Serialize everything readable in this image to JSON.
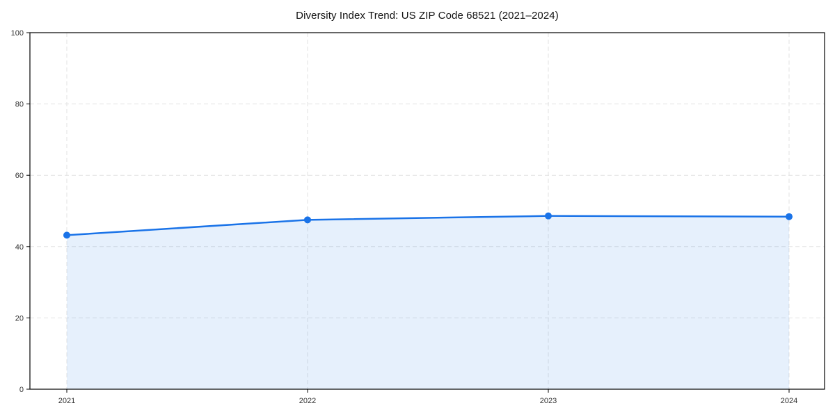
{
  "title": "Diversity Index Trend: US ZIP Code 68521 (2021–2024)",
  "colors": {
    "line": "#1a73e8",
    "marker": "#1a73e8",
    "area_fill": "#1a73e8",
    "area_opacity": 0.11,
    "grid": "#e2e2e2",
    "frame": "#000000",
    "tick": "#000000",
    "tick_label": "#333333",
    "title_text": "#111111",
    "background": "#ffffff"
  },
  "chart_data": {
    "type": "area",
    "title": "Diversity Index Trend: US ZIP Code 68521 (2021–2024)",
    "categories": [
      "2021",
      "2022",
      "2023",
      "2024"
    ],
    "x": [
      2021,
      2022,
      2023,
      2024
    ],
    "series": [
      {
        "name": "Diversity Index",
        "values": [
          43.2,
          47.5,
          48.6,
          48.4
        ]
      }
    ],
    "xlabel": "",
    "ylabel": "",
    "ylim": [
      0,
      100
    ],
    "yticks": [
      0,
      20,
      40,
      60,
      80,
      100
    ],
    "grid": true,
    "grid_style": "dashed",
    "legend": "none",
    "marker": "circle",
    "line_width": 2.5,
    "marker_radius": 5
  }
}
